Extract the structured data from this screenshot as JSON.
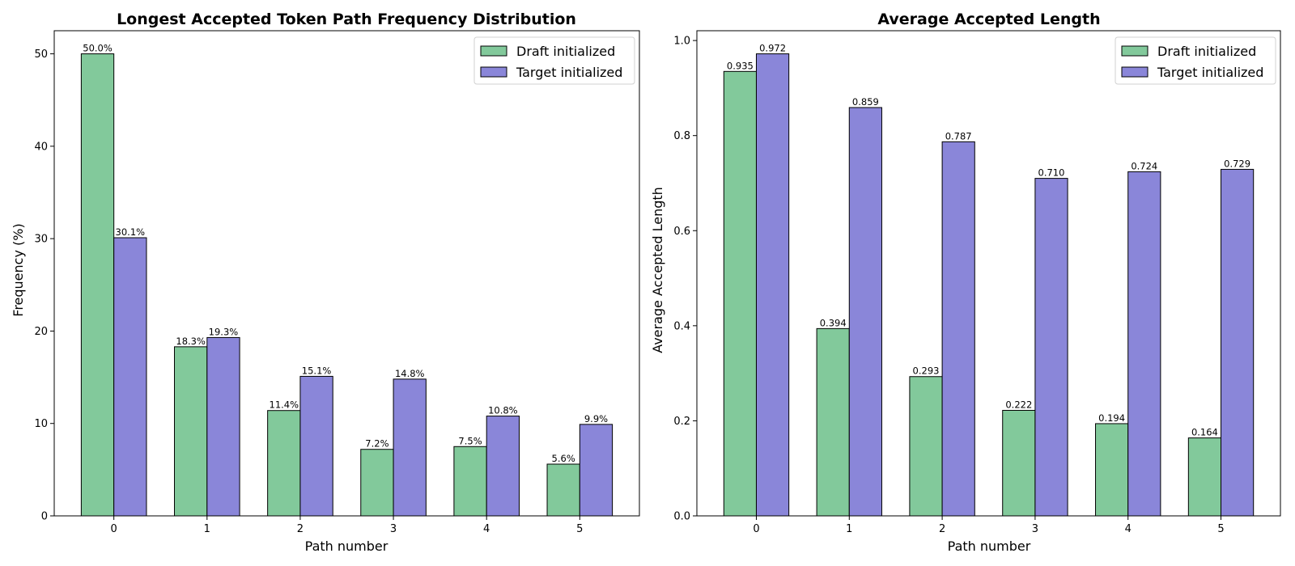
{
  "colors": {
    "draft": "#82c99b",
    "target": "#8a86d9",
    "edge": "#000000",
    "background": "#ffffff"
  },
  "chart_data": [
    {
      "type": "bar",
      "title": "Longest Accepted Token Path Frequency Distribution",
      "xlabel": "Path number",
      "ylabel": "Frequency (%)",
      "categories": [
        "0",
        "1",
        "2",
        "3",
        "4",
        "5"
      ],
      "ylim": [
        0,
        52.5
      ],
      "yticks": [
        0,
        10,
        20,
        30,
        40,
        50
      ],
      "ytick_labels": [
        "0",
        "10",
        "20",
        "30",
        "40",
        "50"
      ],
      "legend_position": "top-right",
      "series": [
        {
          "name": "Draft initialized",
          "color_key": "draft",
          "values": [
            50.0,
            18.3,
            11.4,
            7.2,
            7.5,
            5.6
          ],
          "labels": [
            "50.0%",
            "18.3%",
            "11.4%",
            "7.2%",
            "7.5%",
            "5.6%"
          ]
        },
        {
          "name": "Target initialized",
          "color_key": "target",
          "values": [
            30.1,
            19.3,
            15.1,
            14.8,
            10.8,
            9.9
          ],
          "labels": [
            "30.1%",
            "19.3%",
            "15.1%",
            "14.8%",
            "10.8%",
            "9.9%"
          ]
        }
      ]
    },
    {
      "type": "bar",
      "title": "Average Accepted Length",
      "xlabel": "Path number",
      "ylabel": "Average Accepted Length",
      "categories": [
        "0",
        "1",
        "2",
        "3",
        "4",
        "5"
      ],
      "ylim": [
        0,
        1.0206
      ],
      "yticks": [
        0,
        0.2,
        0.4,
        0.6,
        0.8,
        1.0
      ],
      "ytick_labels": [
        "0.0",
        "0.2",
        "0.4",
        "0.6",
        "0.8",
        "1.0"
      ],
      "legend_position": "top-right",
      "series": [
        {
          "name": "Draft initialized",
          "color_key": "draft",
          "values": [
            0.935,
            0.394,
            0.293,
            0.222,
            0.194,
            0.164
          ],
          "labels": [
            "0.935",
            "0.394",
            "0.293",
            "0.222",
            "0.194",
            "0.164"
          ]
        },
        {
          "name": "Target initialized",
          "color_key": "target",
          "values": [
            0.972,
            0.859,
            0.787,
            0.71,
            0.724,
            0.729
          ],
          "labels": [
            "0.972",
            "0.859",
            "0.787",
            "0.710",
            "0.724",
            "0.729"
          ]
        }
      ]
    }
  ]
}
